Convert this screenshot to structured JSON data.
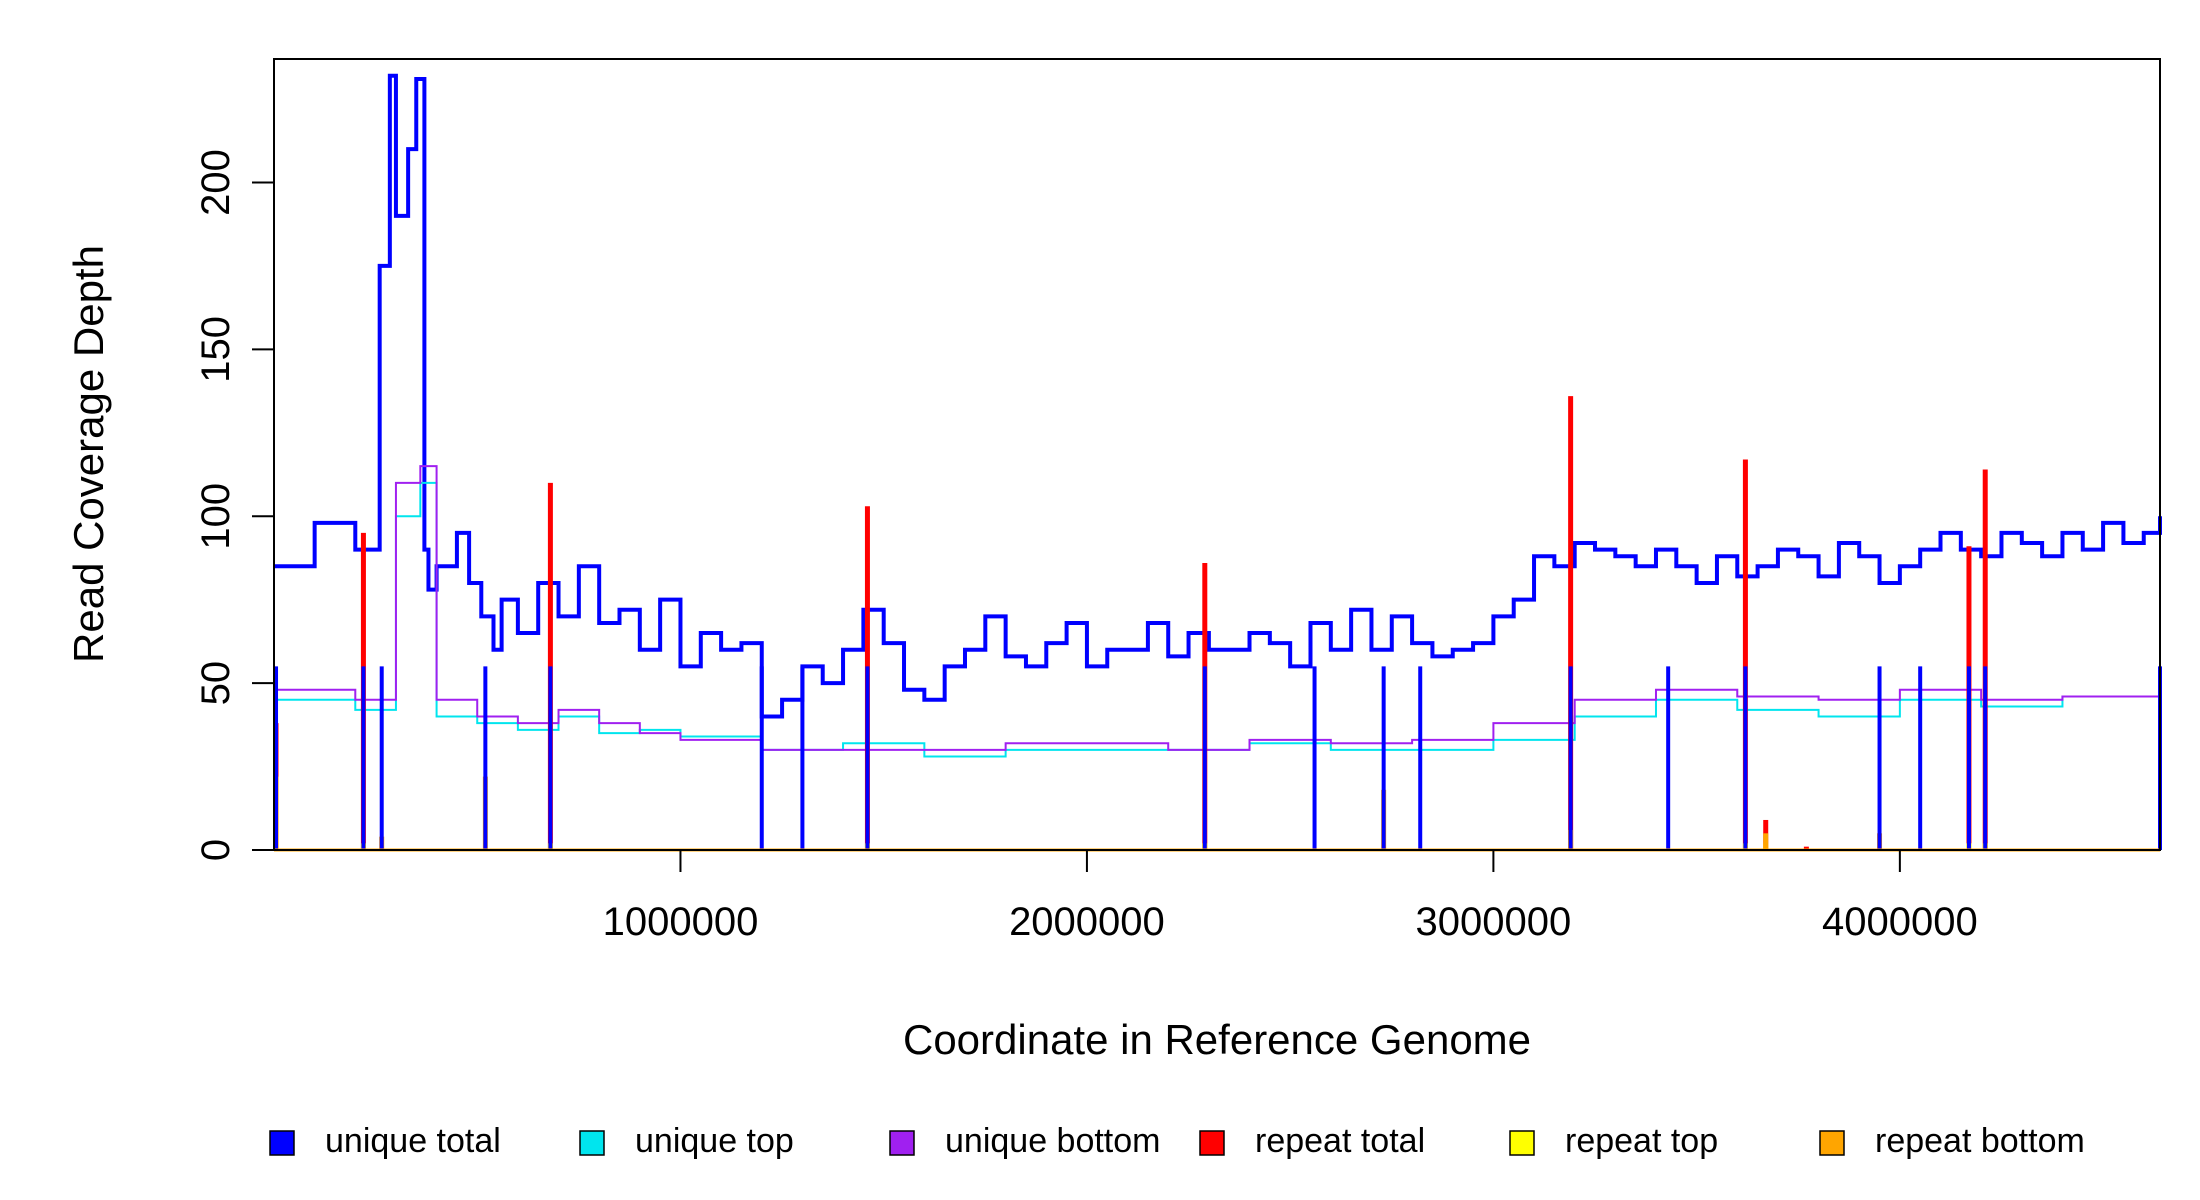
{
  "chart_data": {
    "type": "line",
    "title": "",
    "xlabel": "Coordinate in Reference Genome",
    "ylabel": "Read Coverage Depth",
    "xlim": [
      0,
      4640000
    ],
    "ylim": [
      0,
      237
    ],
    "x_ticks": [
      1000000,
      2000000,
      3000000,
      4000000
    ],
    "x_tick_labels": [
      "1000000",
      "2000000",
      "3000000",
      "4000000"
    ],
    "y_ticks": [
      0,
      50,
      100,
      150,
      200
    ],
    "y_tick_labels": [
      "0",
      "50",
      "100",
      "150",
      "200"
    ],
    "grid": false,
    "legend_position": "bottom",
    "series": [
      {
        "name": "unique total",
        "color": "#0000ff",
        "step": true,
        "x": [
          0,
          100000,
          200000,
          260000,
          285000,
          300000,
          330000,
          350000,
          370000,
          380000,
          400000,
          450000,
          480000,
          510000,
          540000,
          560000,
          600000,
          650000,
          700000,
          750000,
          800000,
          850000,
          900000,
          950000,
          1000000,
          1050000,
          1100000,
          1150000,
          1200000,
          1250000,
          1300000,
          1350000,
          1400000,
          1450000,
          1500000,
          1550000,
          1600000,
          1650000,
          1700000,
          1750000,
          1800000,
          1850000,
          1900000,
          1950000,
          2000000,
          2050000,
          2100000,
          2150000,
          2200000,
          2250000,
          2300000,
          2350000,
          2400000,
          2450000,
          2500000,
          2550000,
          2600000,
          2650000,
          2700000,
          2750000,
          2800000,
          2850000,
          2900000,
          2950000,
          3000000,
          3050000,
          3100000,
          3150000,
          3200000,
          3250000,
          3300000,
          3350000,
          3400000,
          3450000,
          3500000,
          3550000,
          3600000,
          3650000,
          3700000,
          3750000,
          3800000,
          3850000,
          3900000,
          3950000,
          4000000,
          4050000,
          4100000,
          4150000,
          4200000,
          4250000,
          4300000,
          4350000,
          4400000,
          4450000,
          4500000,
          4550000,
          4600000,
          4640000
        ],
        "values": [
          85,
          98,
          90,
          175,
          232,
          190,
          210,
          231,
          90,
          78,
          85,
          95,
          80,
          70,
          60,
          75,
          65,
          80,
          70,
          85,
          68,
          72,
          60,
          75,
          55,
          65,
          60,
          62,
          40,
          45,
          55,
          50,
          60,
          72,
          62,
          48,
          45,
          55,
          60,
          70,
          58,
          55,
          62,
          68,
          55,
          60,
          60,
          68,
          58,
          65,
          60,
          60,
          65,
          62,
          55,
          68,
          60,
          72,
          60,
          70,
          62,
          58,
          60,
          62,
          70,
          75,
          88,
          85,
          92,
          90,
          88,
          85,
          90,
          85,
          80,
          88,
          82,
          85,
          90,
          88,
          82,
          92,
          88,
          80,
          85,
          90,
          95,
          90,
          88,
          95,
          92,
          88,
          95,
          90,
          98,
          92,
          95,
          100
        ]
      },
      {
        "name": "unique top",
        "color": "#00e5ee",
        "step": true,
        "x": [
          0,
          200000,
          300000,
          360000,
          400000,
          500000,
          600000,
          700000,
          800000,
          900000,
          1000000,
          1200000,
          1400000,
          1600000,
          1800000,
          2000000,
          2200000,
          2400000,
          2600000,
          2800000,
          3000000,
          3200000,
          3400000,
          3600000,
          3800000,
          4000000,
          4200000,
          4400000,
          4640000
        ],
        "values": [
          45,
          42,
          100,
          110,
          40,
          38,
          36,
          40,
          35,
          36,
          34,
          30,
          32,
          28,
          30,
          30,
          30,
          32,
          30,
          30,
          33,
          40,
          45,
          42,
          40,
          45,
          43,
          46,
          45
        ]
      },
      {
        "name": "unique bottom",
        "color": "#a020f0",
        "step": true,
        "x": [
          0,
          200000,
          300000,
          360000,
          400000,
          500000,
          600000,
          700000,
          800000,
          900000,
          1000000,
          1200000,
          1400000,
          1600000,
          1800000,
          2000000,
          2200000,
          2400000,
          2600000,
          2800000,
          3000000,
          3200000,
          3400000,
          3600000,
          3800000,
          4000000,
          4200000,
          4400000,
          4640000
        ],
        "values": [
          48,
          45,
          110,
          115,
          45,
          40,
          38,
          42,
          38,
          35,
          33,
          30,
          30,
          30,
          32,
          32,
          30,
          33,
          32,
          33,
          38,
          45,
          48,
          46,
          45,
          48,
          45,
          46,
          45
        ]
      },
      {
        "name": "repeat total",
        "color": "#ff0000",
        "x": [
          5000,
          220000,
          680000,
          1460000,
          2290000,
          3190000,
          3620000,
          3670000,
          3770000,
          4170000,
          4210000
        ],
        "values": [
          38,
          95,
          110,
          103,
          86,
          136,
          117,
          9,
          1,
          91,
          114
        ]
      },
      {
        "name": "repeat top",
        "color": "#ffff00",
        "x": [
          5000,
          220000,
          680000,
          1460000,
          2290000,
          3190000,
          3620000,
          3670000,
          3770000,
          4170000,
          4210000
        ],
        "values": [
          10,
          2,
          2,
          2,
          2,
          3,
          2,
          2,
          0,
          2,
          2
        ]
      },
      {
        "name": "repeat bottom",
        "color": "#ffa500",
        "x": [
          5000,
          265000,
          520000,
          2730000,
          3190000,
          3670000,
          3950000
        ],
        "values": [
          22,
          4,
          22,
          18,
          6,
          5,
          5
        ]
      }
    ],
    "spikes_to_zero": [
      5000,
      220000,
      265000,
      520000,
      680000,
      1200000,
      1300000,
      1460000,
      2290000,
      2560000,
      2730000,
      2820000,
      3190000,
      3430000,
      3620000,
      3950000,
      4050000,
      4170000,
      4210000,
      4640000
    ]
  }
}
